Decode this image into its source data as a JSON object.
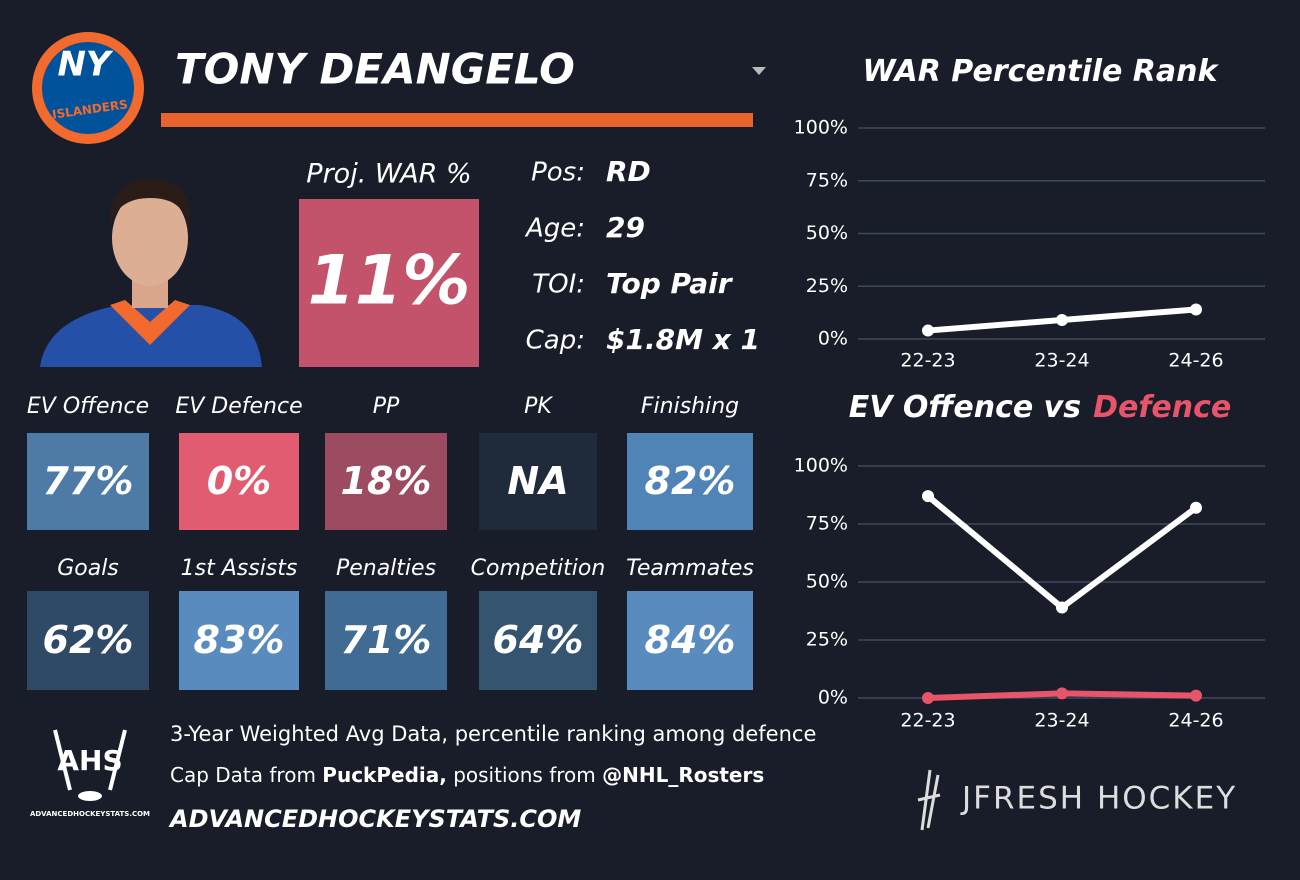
{
  "header": {
    "player": "TONY DEANGELO"
  },
  "logo": {
    "mark": "NY",
    "word": "ISLANDERS"
  },
  "projection": {
    "label": "Proj. WAR %",
    "value": "11%",
    "color": "#c2536a"
  },
  "bio": [
    {
      "label": "Pos:",
      "value": "RD"
    },
    {
      "label": "Age:",
      "value": "29"
    },
    {
      "label": "TOI:",
      "value": "Top Pair"
    },
    {
      "label": "Cap:",
      "value": "$1.8M x 1"
    }
  ],
  "tiles": [
    {
      "label": "EV Offence",
      "value": "77%",
      "color": "#4d7ba6"
    },
    {
      "label": "EV Defence",
      "value": "0%",
      "color": "#e15c70"
    },
    {
      "label": "PP",
      "value": "18%",
      "color": "#9c4b60"
    },
    {
      "label": "PK",
      "value": "NA",
      "color": "#1f2b3a"
    },
    {
      "label": "Finishing",
      "value": "82%",
      "color": "#5184b6"
    },
    {
      "label": "Goals",
      "value": "62%",
      "color": "#2f4a67"
    },
    {
      "label": "1st Assists",
      "value": "83%",
      "color": "#5a8bbf"
    },
    {
      "label": "Penalties",
      "value": "71%",
      "color": "#406b93"
    },
    {
      "label": "Competition",
      "value": "64%",
      "color": "#35546f"
    },
    {
      "label": "Teammates",
      "value": "84%",
      "color": "#5a8bbf"
    }
  ],
  "footer": {
    "note": "3-Year Weighted Avg Data, percentile ranking among defence",
    "sources": [
      "Cap Data from ",
      "PuckPedia,",
      " positions from ",
      "@NHL_Rosters"
    ],
    "site": "ADVANCEDHOCKEYSTATS.COM",
    "ahs_logo": {
      "mark": "AHS",
      "site": "ADVANCEDHOCKEYSTATS.COM"
    },
    "brand": "JFRESH HOCKEY"
  },
  "chart_data": [
    {
      "type": "line",
      "title": [
        "WAR Percentile Rank"
      ],
      "categories": [
        "22-23",
        "23-24",
        "24-26"
      ],
      "series": [
        {
          "color": "#ffffff",
          "values": [
            4,
            9,
            14
          ]
        }
      ],
      "ylim": [
        0,
        100
      ],
      "yticks": [
        {
          "value": 0,
          "label": "0%"
        },
        {
          "value": 25,
          "label": "25%"
        },
        {
          "value": 50,
          "label": "50%"
        },
        {
          "value": 75,
          "label": "75%"
        },
        {
          "value": 100,
          "label": "100%"
        }
      ],
      "grid": true
    },
    {
      "type": "line",
      "title": [
        "EV Offence vs",
        "Defence"
      ],
      "categories": [
        "22-23",
        "23-24",
        "24-26"
      ],
      "series": [
        {
          "color": "#ffffff",
          "values": [
            87,
            39,
            82
          ]
        },
        {
          "color": "#e8556a",
          "values": [
            0,
            2,
            1
          ]
        }
      ],
      "ylim": [
        0,
        100
      ],
      "yticks": [
        {
          "value": 0,
          "label": "0%"
        },
        {
          "value": 25,
          "label": "25%"
        },
        {
          "value": 50,
          "label": "50%"
        },
        {
          "value": 75,
          "label": "75%"
        },
        {
          "value": 100,
          "label": "100%"
        }
      ],
      "grid": true
    }
  ]
}
